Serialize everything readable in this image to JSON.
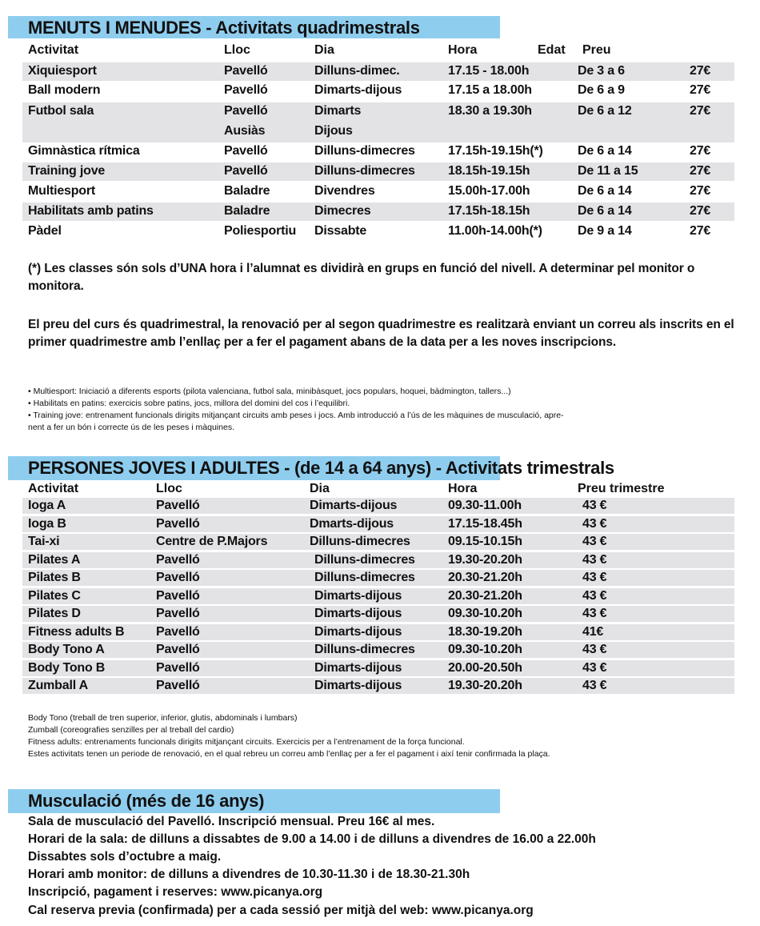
{
  "menuts": {
    "title": "MENUTS I MENUDES - Activitats quadrimestrals",
    "headers": {
      "activitat": "Activitat",
      "lloc": "Lloc",
      "dia": "Dia",
      "hora": "Hora",
      "edat": "Edat",
      "preu": "Preu"
    },
    "rows": [
      {
        "activitat": "Xiquiesport",
        "lloc": "Pavelló",
        "dia": "Dilluns-dimec.",
        "hora": "17.15 - 18.00h",
        "edat": "De 3 a 6",
        "preu": "27€"
      },
      {
        "activitat": "Ball modern",
        "lloc": "Pavelló",
        "dia": "Dimarts-dijous",
        "hora": "17.15 a 18.00h",
        "edat": "De 6 a 9",
        "preu": "27€"
      },
      {
        "activitat": "Futbol sala",
        "lloc": "Pavelló",
        "lloc2": "Ausiàs",
        "dia": "Dimarts",
        "dia2": "Dijous",
        "hora": "18.30 a 19.30h",
        "edat": "De 6 a 12",
        "preu": "27€"
      },
      {
        "activitat": "Gimnàstica rítmica",
        "lloc": "Pavelló",
        "dia": "Dilluns-dimecres",
        "hora": "17.15h-19.15h(*)",
        "edat": "De 6 a 14",
        "preu": "27€"
      },
      {
        "activitat": "Training jove",
        "lloc": "Pavelló",
        "dia": "Dilluns-dimecres",
        "hora": "18.15h-19.15h",
        "edat": "De 11 a 15",
        "preu": "27€"
      },
      {
        "activitat": "Multiesport",
        "lloc": "Baladre",
        "dia": "Divendres",
        "hora": "15.00h-17.00h",
        "edat": "De 6 a 14",
        "preu": "27€"
      },
      {
        "activitat": "Habilitats amb patins",
        "lloc": "Baladre",
        "dia": "Dimecres",
        "hora": "17.15h-18.15h",
        "edat": "De 6 a 14",
        "preu": "27€"
      },
      {
        "activitat": "Pàdel",
        "lloc": "Poliesportiu",
        "dia": "Dissabte",
        "hora": "11.00h-14.00h(*)",
        "edat": "De 9 a 14",
        "preu": "27€"
      }
    ],
    "note1": "(*) Les classes són sols d’UNA hora i l’alumnat es dividirà en grups en funció del nivell. A determinar pel monitor o monitora.",
    "note2": "El preu del curs és quadrimestral, la renovació per al segon quadrimestre es realitzarà enviant un correu als inscrits en el primer quadrimestre amb l’enllaç per a fer el pagament abans de la data per a les noves inscripcions.",
    "bullets": [
      "• Multiesport: Iniciació a diferents esports (pilota valenciana, futbol sala, minibàsquet, jocs populars, hoquei, bàdmington, tallers...)",
      "• Habilitats en patins: exercicis sobre patins, jocs, millora del domini del cos i l’equilibri.",
      "• Training jove: entrenament funcionals dirigits mitjançant circuits amb peses i jocs. Amb introducció a l’ús de les màquines de musculació, apre-",
      "nent a fer un bón i correcte ús de les peses i màquines."
    ]
  },
  "adults": {
    "title_highlighted": "PERSONES JOVES I ADULTES - (de 14 a 64 anys) -",
    "title_rest": "Activitats trimestrals",
    "headers": {
      "activitat": "Activitat",
      "lloc": "Lloc",
      "dia": "Dia",
      "hora": "Hora",
      "preu": "Preu trimestre"
    },
    "rows": [
      {
        "activitat": "Ioga A",
        "lloc": "Pavelló",
        "dia": "Dimarts-dijous",
        "hora": "09.30-11.00h",
        "preu": "43 €"
      },
      {
        "activitat": "Ioga B",
        "lloc": "Pavelló",
        "dia": "Dmarts-dijous",
        "hora": "17.15-18.45h",
        "preu": "43 €"
      },
      {
        "activitat": "Tai-xi",
        "lloc": "Centre de P.Majors",
        "dia": "Dilluns-dimecres",
        "hora": "09.15-10.15h",
        "preu": "43 €"
      },
      {
        "activitat": "Pilates A",
        "lloc": "Pavelló",
        "dia": "Dilluns-dimecres",
        "hora": "19.30-20.20h",
        "preu": "43 €"
      },
      {
        "activitat": "Pilates B",
        "lloc": "Pavelló",
        "dia": "Dilluns-dimecres",
        "hora": "20.30-21.20h",
        "preu": "43 €"
      },
      {
        "activitat": "Pilates C",
        "lloc": "Pavelló",
        "dia": "Dimarts-dijous",
        "hora": "20.30-21.20h",
        "preu": "43 €"
      },
      {
        "activitat": "Pilates D",
        "lloc": "Pavelló",
        "dia": "Dimarts-dijous",
        "hora": "09.30-10.20h",
        "preu": "43 €"
      },
      {
        "activitat": "Fitness adults B",
        "lloc": "Pavelló",
        "dia": "Dimarts-dijous",
        "hora": "18.30-19.20h",
        "preu": "41€"
      },
      {
        "activitat": "Body Tono A",
        "lloc": "Pavelló",
        "dia": "Dilluns-dimecres",
        "hora": "09.30-10.20h",
        "preu": "43 €"
      },
      {
        "activitat": "Body Tono B",
        "lloc": "Pavelló",
        "dia": "Dimarts-dijous",
        "hora": "20.00-20.50h",
        "preu": "43 €"
      },
      {
        "activitat": "Zumball A",
        "lloc": "Pavelló",
        "dia": "Dimarts-dijous",
        "hora": "19.30-20.20h",
        "preu": "43 €"
      }
    ],
    "notes": [
      "Body Tono (treball de tren superior, inferior, glutis, abdominals i lumbars)",
      "Zumball (coreografies senzilles per al treball del cardio)",
      "Fitness adults: entrenaments funcionals dirigits mitjançant circuits. Exercicis per a l’entrenament de la força funcional.",
      "Estes activitats tenen un periode de renovació, en el qual rebreu un correu amb l’enllaç per a fer el pagament i així tenir confirmada la plaça."
    ]
  },
  "musculacio": {
    "title": "Musculació (més de 16 anys)",
    "lines": [
      "Sala de musculació del Pavelló. Inscripció mensual. Preu 16€ al mes.",
      "Horari de la sala: de dilluns a dissabtes de 9.00 a 14.00 i de dilluns a divendres de 16.00 a 22.00h",
      "Dissabtes sols d’octubre a maig.",
      "Horari amb monitor: de dilluns a divendres de 10.30-11.30 i de 18.30-21.30h",
      "Inscripció, pagament i reserves: www.picanya.org",
      "Cal reserva previa (confirmada) per a cada sessió per mitjà del web: www.picanya.org"
    ]
  },
  "colors": {
    "header_bar": "#8fcdee",
    "row_band": "#e3e3e6"
  }
}
